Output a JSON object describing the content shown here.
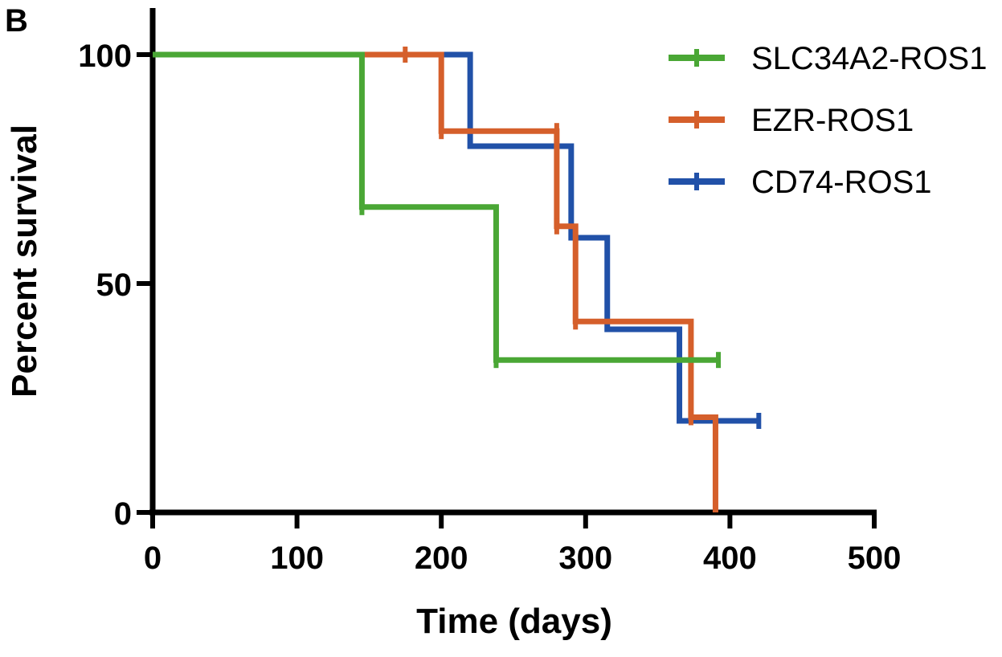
{
  "panel_label": "B",
  "chart_data": {
    "type": "line",
    "step": true,
    "xlabel": "Time (days)",
    "ylabel": "Percent survival",
    "xlim": [
      0,
      500
    ],
    "ylim": [
      0,
      100
    ],
    "xticks": [
      0,
      100,
      200,
      300,
      400,
      500
    ],
    "yticks": [
      0,
      50,
      100
    ],
    "legend_position": "top-right",
    "series": [
      {
        "name": "SLC34A2-ROS1",
        "color": "#4aa735",
        "x": [
          0,
          145,
          238,
          392
        ],
        "y": [
          100,
          66.7,
          33.3,
          33.3
        ],
        "censored": [
          {
            "x": 145,
            "y": 66.7
          },
          {
            "x": 238,
            "y": 33.3
          },
          {
            "x": 392,
            "y": 33.3
          }
        ]
      },
      {
        "name": "EZR-ROS1",
        "color": "#d55f2b",
        "x": [
          0,
          200,
          280,
          293,
          373,
          390
        ],
        "y": [
          100,
          83.3,
          62.5,
          41.7,
          20.8,
          0
        ],
        "censored": [
          {
            "x": 175,
            "y": 100
          },
          {
            "x": 200,
            "y": 83.3
          },
          {
            "x": 280,
            "y": 83.3
          },
          {
            "x": 280,
            "y": 62.5
          },
          {
            "x": 293,
            "y": 41.7
          },
          {
            "x": 373,
            "y": 20.8
          }
        ]
      },
      {
        "name": "CD74-ROS1",
        "color": "#2151a8",
        "x": [
          0,
          220,
          290,
          315,
          365,
          420
        ],
        "y": [
          100,
          80,
          60,
          40,
          20,
          20
        ],
        "censored": [
          {
            "x": 420,
            "y": 20
          }
        ]
      }
    ]
  }
}
